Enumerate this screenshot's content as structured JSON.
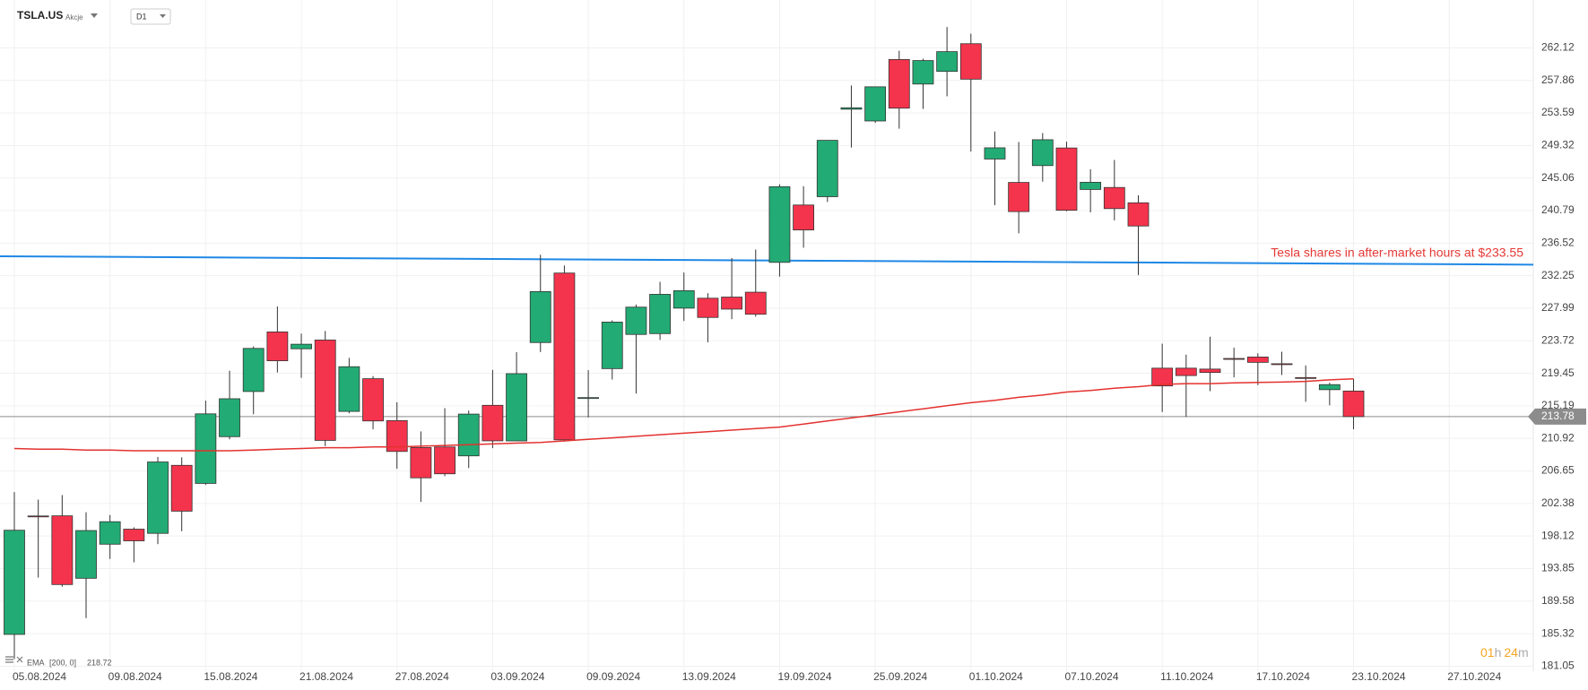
{
  "header": {
    "symbol": "TSLA.US",
    "market": "Akcje",
    "interval": "D1"
  },
  "timer": {
    "hours": "01",
    "hours_unit": "h",
    "minutes": "24",
    "minutes_unit": "m"
  },
  "chart_data": {
    "type": "candlestick",
    "categories": [
      "05.08.2024",
      null,
      null,
      null,
      "09.08.2024",
      null,
      null,
      null,
      "15.08.2024",
      null,
      null,
      null,
      "21.08.2024",
      null,
      null,
      null,
      "27.08.2024",
      null,
      null,
      null,
      "03.09.2024",
      null,
      null,
      null,
      "09.09.2024",
      null,
      null,
      null,
      "13.09.2024",
      null,
      null,
      null,
      "19.09.2024",
      null,
      null,
      null,
      "25.09.2024",
      null,
      null,
      null,
      "01.10.2024",
      null,
      null,
      null,
      "07.10.2024",
      null,
      null,
      null,
      "11.10.2024",
      null,
      null,
      null,
      "17.10.2024",
      null,
      null,
      null,
      "23.10.2024",
      null,
      null,
      null,
      "27.10.2024"
    ],
    "open": [
      185.22,
      200.75,
      200.77,
      192.58,
      197.05,
      199.02,
      198.47,
      207.39,
      205.02,
      211.15,
      217.07,
      224.88,
      222.67,
      223.82,
      214.46,
      218.75,
      213.25,
      209.72,
      209.8,
      208.63,
      215.26,
      210.59,
      223.49,
      232.6,
      216.2,
      220.07,
      224.55,
      224.66,
      228.0,
      229.3,
      229.45,
      230.09,
      234.0,
      241.52,
      242.61,
      254.08,
      252.54,
      260.6,
      257.38,
      259.04,
      262.67,
      247.55,
      244.48,
      246.69,
      249.0,
      243.56,
      243.82,
      241.81,
      220.13,
      220.13,
      220.01,
      221.4,
      221.59,
      220.71,
      218.9,
      217.31,
      217.13,
      null,
      null,
      null,
      null
    ],
    "high": [
      203.88,
      202.9,
      203.49,
      201.24,
      200.88,
      199.26,
      208.49,
      208.44,
      215.88,
      219.8,
      222.98,
      228.22,
      224.66,
      225.0,
      221.48,
      219.09,
      215.66,
      211.84,
      214.89,
      214.57,
      219.9,
      222.22,
      235.0,
      233.6,
      219.87,
      226.4,
      228.47,
      231.45,
      232.67,
      229.96,
      234.57,
      235.68,
      244.24,
      243.99,
      250.0,
      257.19,
      257.05,
      261.75,
      260.7,
      264.86,
      263.98,
      251.16,
      249.79,
      250.96,
      249.83,
      246.21,
      247.43,
      242.79,
      223.34,
      221.91,
      224.26,
      222.82,
      222.08,
      222.28,
      220.48,
      218.22,
      218.72,
      null,
      null,
      null,
      null
    ],
    "low": [
      182.0,
      192.67,
      191.48,
      187.36,
      195.11,
      194.67,
      197.06,
      198.75,
      204.82,
      210.8,
      214.09,
      219.56,
      218.86,
      209.9,
      214.21,
      212.11,
      206.94,
      202.59,
      205.97,
      207.03,
      209.64,
      210.57,
      222.25,
      210.51,
      213.67,
      218.64,
      216.8,
      223.83,
      226.32,
      223.53,
      226.55,
      226.88,
      232.13,
      235.92,
      241.92,
      249.05,
      252.28,
      251.53,
      254.12,
      255.77,
      248.53,
      241.5,
      237.81,
      244.58,
      240.7,
      240.56,
      239.51,
      232.34,
      214.38,
      213.74,
      217.12,
      218.93,
      217.9,
      219.23,
      215.73,
      215.26,
      212.11,
      null,
      null,
      null,
      null
    ],
    "close": [
      198.88,
      200.64,
      191.76,
      198.84,
      200.0,
      197.49,
      207.83,
      201.38,
      214.14,
      216.12,
      222.72,
      221.1,
      223.27,
      210.66,
      220.32,
      213.21,
      209.21,
      205.75,
      206.28,
      214.11,
      210.6,
      219.41,
      230.17,
      210.73,
      216.27,
      226.17,
      228.13,
      229.81,
      230.29,
      226.78,
      227.87,
      227.2,
      243.92,
      238.25,
      250.0,
      254.27,
      257.02,
      254.22,
      260.46,
      261.63,
      258.02,
      249.02,
      240.66,
      250.08,
      240.83,
      244.5,
      241.05,
      238.77,
      217.8,
      219.16,
      219.57,
      221.33,
      220.89,
      220.7,
      218.85,
      217.97,
      213.78,
      null,
      null,
      null,
      null
    ],
    "up_color": "#22ab74",
    "down_color": "#f4344c",
    "ema": {
      "name": "EMA",
      "params": "[200, 0]",
      "last": 218.72,
      "color": "#e3322f",
      "values": [
        209.6,
        209.5,
        209.5,
        209.4,
        209.4,
        209.3,
        209.3,
        209.3,
        209.3,
        209.3,
        209.4,
        209.5,
        209.6,
        209.7,
        209.7,
        209.8,
        209.8,
        209.9,
        210.0,
        210.1,
        210.2,
        210.3,
        210.4,
        210.6,
        210.8,
        211.0,
        211.2,
        211.4,
        211.6,
        211.8,
        212.0,
        212.2,
        212.4,
        212.8,
        213.2,
        213.6,
        214.0,
        214.4,
        214.8,
        215.2,
        215.6,
        215.9,
        216.3,
        216.6,
        217.0,
        217.2,
        217.5,
        217.7,
        218.0,
        218.1,
        218.1,
        218.2,
        218.25,
        218.3,
        218.4,
        218.6,
        218.72,
        null,
        null,
        null,
        null
      ]
    },
    "trendline": {
      "start": 234.8,
      "end": 233.7,
      "color": "#1e88e5"
    },
    "annotation": {
      "text": "Tesla shares in after-market hours at $233.55",
      "color": "#e53935"
    },
    "last_price": 213.78,
    "last_price_color": "#8c8c8c",
    "ylim": [
      180.4,
      268.4
    ],
    "yticks": [
      262.12,
      257.86,
      253.59,
      249.32,
      245.06,
      240.79,
      236.52,
      232.25,
      227.99,
      223.72,
      219.45,
      215.19,
      210.92,
      206.65,
      202.38,
      198.12,
      193.85,
      189.58,
      185.32,
      181.05
    ],
    "grid": true
  }
}
